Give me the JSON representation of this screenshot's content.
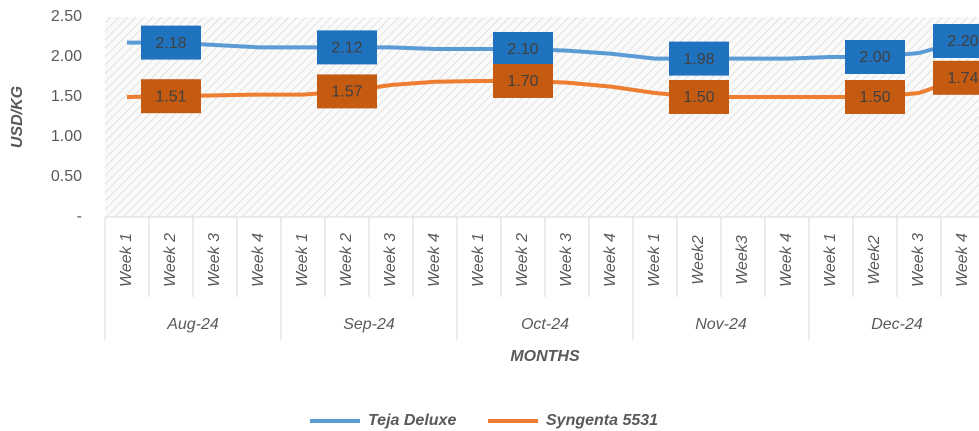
{
  "chart_data": {
    "type": "line",
    "y_label": "USD/KG",
    "x_label": "MONTHS",
    "categories": [
      "Week 1",
      "Week 2",
      "Week 3",
      "Week 4",
      "Week 1",
      "Week 2",
      "Week 3",
      "Week 4",
      "Week 1",
      "Week 2",
      "Week 3",
      "Week 4",
      "Week 1",
      "Week2",
      "Week3",
      "Week 4",
      "Week 1",
      "Week2",
      "Week 3",
      "Week 4"
    ],
    "groups": [
      "Aug-24",
      "Sep-24",
      "Oct-24",
      "Nov-24",
      "Dec-24"
    ],
    "ylim": [
      0,
      2.5
    ],
    "yticks": [
      {
        "value": 0,
        "label": "-"
      },
      {
        "value": 0.5,
        "label": "0.50"
      },
      {
        "value": 1,
        "label": "1.00"
      },
      {
        "value": 1.5,
        "label": "1.50"
      },
      {
        "value": 2,
        "label": "2.00"
      },
      {
        "value": 2.5,
        "label": "2.50"
      }
    ],
    "series": [
      {
        "name": "Teja Deluxe",
        "color": "#5b9bd5",
        "label_color": "#1f72be",
        "values": [
          2.18,
          2.18,
          2.15,
          2.12,
          2.12,
          2.12,
          2.12,
          2.1,
          2.1,
          2.1,
          2.08,
          2.04,
          1.98,
          1.98,
          1.98,
          1.98,
          2.0,
          2.0,
          2.05,
          2.2
        ],
        "value_labels": [
          null,
          "2.18",
          null,
          null,
          null,
          "2.12",
          null,
          null,
          null,
          "2.10",
          null,
          null,
          null,
          "1.98",
          null,
          null,
          null,
          "2.00",
          null,
          "2.20"
        ]
      },
      {
        "name": "Syngenta 5531",
        "color": "#ed7d31",
        "label_color": "#c55a11",
        "values": [
          1.5,
          1.51,
          1.52,
          1.53,
          1.53,
          1.57,
          1.65,
          1.69,
          1.7,
          1.7,
          1.68,
          1.63,
          1.55,
          1.5,
          1.5,
          1.5,
          1.5,
          1.5,
          1.55,
          1.74
        ],
        "value_labels": [
          null,
          "1.51",
          null,
          null,
          null,
          "1.57",
          null,
          null,
          null,
          "1.70",
          null,
          null,
          null,
          "1.50",
          null,
          null,
          null,
          "1.50",
          null,
          "1.74"
        ]
      }
    ]
  }
}
